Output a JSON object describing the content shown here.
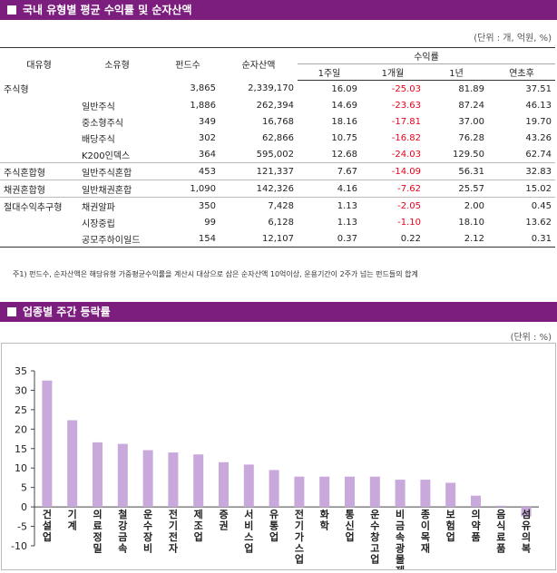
{
  "section1": {
    "title": "국내 유형별 평균 수익률 및 순자산액",
    "unit": "(단위 : 개, 억원, %)"
  },
  "table": {
    "headers": {
      "type": "대유형",
      "subtype": "소유형",
      "funds": "펀드수",
      "assets": "순자산액",
      "returns": "수익률",
      "w1": "1주일",
      "m1": "1개월",
      "y1": "1년",
      "ytd": "연초후"
    },
    "rows": [
      {
        "group": "주식형",
        "sub": "",
        "funds": "3,865",
        "assets": "2,339,170",
        "w1": "16.09",
        "m1": "-25.03",
        "y1": "81.89",
        "ytd": "37.51"
      },
      {
        "group": "",
        "sub": "일반주식",
        "funds": "1,886",
        "assets": "262,394",
        "w1": "14.69",
        "m1": "-23.63",
        "y1": "87.24",
        "ytd": "46.13"
      },
      {
        "group": "",
        "sub": "중소형주식",
        "funds": "349",
        "assets": "16,768",
        "w1": "18.16",
        "m1": "-17.81",
        "y1": "37.00",
        "ytd": "19.70"
      },
      {
        "group": "",
        "sub": "배당주식",
        "funds": "302",
        "assets": "62,866",
        "w1": "10.75",
        "m1": "-16.82",
        "y1": "76.28",
        "ytd": "43.26"
      },
      {
        "group": "",
        "sub": "K200인덱스",
        "funds": "364",
        "assets": "595,002",
        "w1": "12.68",
        "m1": "-24.03",
        "y1": "129.50",
        "ytd": "62.74"
      },
      {
        "group": "주식혼합형",
        "sub": "일반주식혼합",
        "funds": "453",
        "assets": "121,337",
        "w1": "7.67",
        "m1": "-14.09",
        "y1": "56.31",
        "ytd": "32.83"
      },
      {
        "group": "채권혼합형",
        "sub": "일반채권혼합",
        "funds": "1,090",
        "assets": "142,326",
        "w1": "4.16",
        "m1": "-7.62",
        "y1": "25.57",
        "ytd": "15.02"
      },
      {
        "group": "절대수익추구형",
        "sub": "채권알파",
        "funds": "350",
        "assets": "7,428",
        "w1": "1.13",
        "m1": "-2.05",
        "y1": "2.00",
        "ytd": "0.45"
      },
      {
        "group": "",
        "sub": "시장중립",
        "funds": "99",
        "assets": "6,128",
        "w1": "1.13",
        "m1": "-1.10",
        "y1": "18.10",
        "ytd": "13.62"
      },
      {
        "group": "",
        "sub": "공모주하이일드",
        "funds": "154",
        "assets": "12,107",
        "w1": "0.37",
        "m1": "0.22",
        "y1": "2.12",
        "ytd": "0.31"
      }
    ]
  },
  "note": "주1) 펀드수, 순자산액은 해당유형 가중평균수익률을 계산시 대상으로 삼은 순자산액 10억이상, 운용기간이 2주가 넘는 펀드들의 합계",
  "section2": {
    "title": "업종별 주간 등락률",
    "unit": "(단위 : %)"
  },
  "colors": {
    "header_bar": "#7b1e7d",
    "bar": "#c9a8dc",
    "negative": "#e8001c"
  },
  "chart_data": {
    "type": "bar",
    "categories": [
      "건설업",
      "기계",
      "의료정밀",
      "철강금속",
      "운수장비",
      "전기전자",
      "제조업",
      "증권",
      "서비스업",
      "유통업",
      "전기가스업",
      "화학",
      "통신업",
      "운수창고업",
      "비금속광물제품",
      "종이목재",
      "보험업",
      "의약품",
      "음식료품",
      "섬유의복"
    ],
    "values": [
      32.5,
      22.3,
      16.6,
      16.2,
      14.6,
      14.0,
      13.5,
      11.5,
      10.9,
      9.5,
      7.8,
      7.8,
      7.8,
      7.8,
      7.0,
      7.0,
      6.2,
      2.9,
      0.3,
      -2.5
    ],
    "ylim": [
      -10,
      35
    ],
    "yticks": [
      -10,
      -5,
      0,
      5,
      10,
      15,
      20,
      25,
      30,
      35
    ],
    "grid": false,
    "legend": "none"
  }
}
